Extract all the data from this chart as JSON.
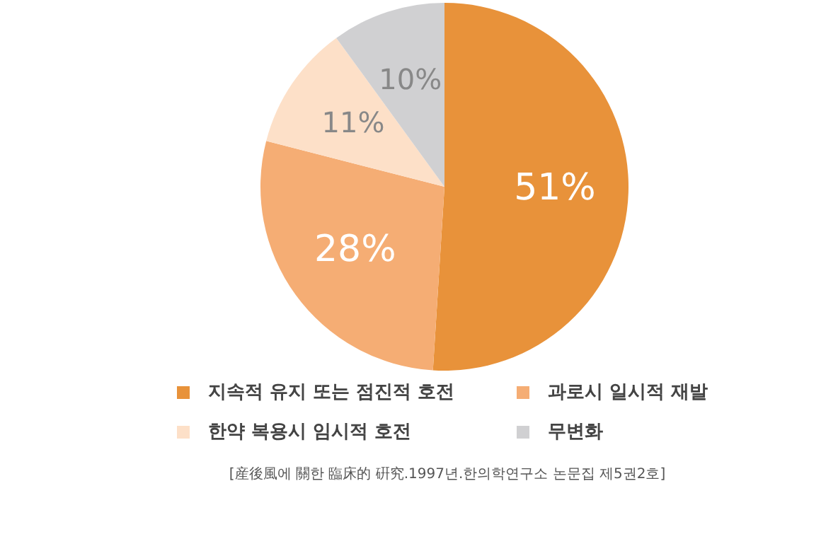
{
  "chart_data": {
    "type": "pie",
    "categories": [
      "지속적 유지 또는 점진적 호전",
      "과로시 일시적 재발",
      "한약 복용시 임시적 호전",
      "무변화"
    ],
    "values": [
      51,
      28,
      11,
      10
    ],
    "colors": [
      "#e8923a",
      "#f5ad74",
      "#fde0c8",
      "#d0d0d2"
    ],
    "value_labels": [
      "51%",
      "28%",
      "11%",
      "10%"
    ],
    "legend": "bottom",
    "annotations": [
      "[産後風에 關한 臨床的 硏究.1997년.한의학연구소 논문집 제5권2호]"
    ]
  }
}
